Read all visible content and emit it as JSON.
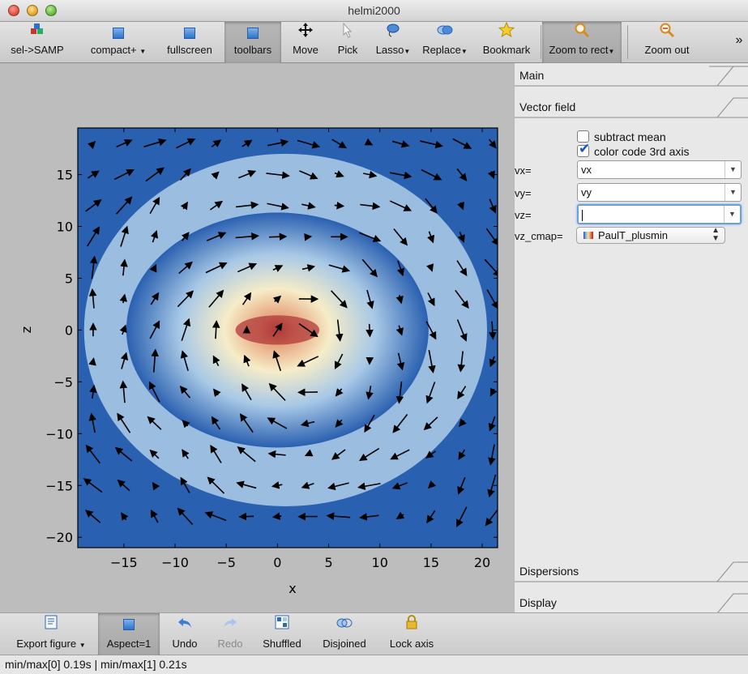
{
  "window": {
    "title": "helmi2000"
  },
  "toolbar": {
    "items": [
      {
        "label": "sel->SAMP",
        "icon": "samp-icon"
      },
      {
        "label": "compact+",
        "icon": "square-icon"
      },
      {
        "label": "fullscreen",
        "icon": "square-icon"
      },
      {
        "label": "toolbars",
        "icon": "square-icon",
        "pressed": true
      },
      {
        "label": "Move",
        "icon": "move-icon"
      },
      {
        "label": "Pick",
        "icon": "pointer-icon"
      },
      {
        "label": "Lasso",
        "icon": "lasso-icon"
      },
      {
        "label": "Replace",
        "icon": "replace-icon"
      },
      {
        "label": "Bookmark",
        "icon": "star-icon"
      },
      {
        "label": "Zoom to rect",
        "icon": "zoom-icon",
        "pressed": true
      },
      {
        "label": "Zoom out",
        "icon": "zoom-out-icon"
      }
    ],
    "overflow": "»"
  },
  "plot": {
    "xlabel": "x",
    "ylabel": "z",
    "xticks": [
      "−15",
      "−10",
      "−5",
      "0",
      "5",
      "10",
      "15",
      "20"
    ],
    "yticks": [
      "15",
      "10",
      "5",
      "0",
      "−5",
      "−10",
      "−15",
      "−20"
    ]
  },
  "chart_data": {
    "type": "heatmap",
    "title": "",
    "xlabel": "x",
    "ylabel": "z",
    "xlim": [
      -19.5,
      21.5
    ],
    "ylim": [
      -21,
      19.5
    ],
    "xticks": [
      -15,
      -10,
      -5,
      0,
      5,
      10,
      15,
      20
    ],
    "yticks": [
      15,
      10,
      5,
      0,
      -5,
      -10,
      -15,
      -20
    ],
    "density_peak": [
      0,
      0
    ],
    "colormap": [
      "#2a60b0",
      "#a7c8e6",
      "#f6ecc8",
      "#e6a27a",
      "#b03a3a"
    ],
    "vector_field": {
      "x_centers": [
        -18,
        -15,
        -12,
        -9,
        -6,
        -3,
        0,
        3,
        6,
        9,
        12,
        15,
        18,
        21
      ],
      "z_centers": [
        18,
        15,
        12,
        9,
        6,
        3,
        0,
        -3,
        -6,
        -9,
        -12,
        -15,
        -18
      ],
      "arrow_color": "#000000"
    }
  },
  "panel": {
    "tabs": [
      "Main",
      "Vector field",
      "Dispersions",
      "Display"
    ],
    "subtract_mean": {
      "label": "subtract mean",
      "checked": false
    },
    "color_code": {
      "label": "color code 3rd axis",
      "checked": true
    },
    "fields": [
      {
        "label": "vx=",
        "value": "vx"
      },
      {
        "label": "vy=",
        "value": "vy"
      },
      {
        "label": "vz=",
        "value": ""
      }
    ],
    "cmap": {
      "label": "vz_cmap=",
      "value": "PaulT_plusmin"
    }
  },
  "bottombar": {
    "items": [
      {
        "label": "Export figure",
        "icon": "export-icon"
      },
      {
        "label": "Aspect=1",
        "icon": "square-icon",
        "pressed": true
      },
      {
        "label": "Undo",
        "icon": "undo-icon"
      },
      {
        "label": "Redo",
        "icon": "redo-icon",
        "disabled": true
      },
      {
        "label": "Shuffled",
        "icon": "shuffled-icon"
      },
      {
        "label": "Disjoined",
        "icon": "disjoined-icon"
      },
      {
        "label": "Lock axis",
        "icon": "lock-icon"
      }
    ]
  },
  "status": {
    "text": "min/max[0] 0.19s | min/max[1] 0.21s"
  }
}
